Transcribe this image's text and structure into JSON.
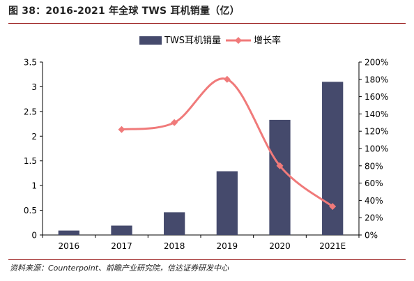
{
  "title": "图 38：2016-2021 年全球 TWS 耳机销量（亿）",
  "source": "资料来源：Counterpoint、前瞻产业研究院，信达证券研发中心",
  "colors": {
    "bar": "#454a6c",
    "line": "#f07a7a",
    "axis": "#000000",
    "rule": "#9a1b1b"
  },
  "chart_data": {
    "type": "bar+line",
    "categories": [
      "2016",
      "2017",
      "2018",
      "2019",
      "2020",
      "2021E"
    ],
    "series": [
      {
        "name": "TWS耳机销量",
        "type": "bar",
        "axis": "left",
        "values": [
          0.09,
          0.19,
          0.46,
          1.29,
          2.33,
          3.1
        ]
      },
      {
        "name": "增长率",
        "type": "line",
        "axis": "right",
        "values": [
          null,
          122,
          130,
          180,
          80,
          33
        ]
      }
    ],
    "y_left": {
      "min": 0,
      "max": 3.5,
      "ticks": [
        "0",
        "0.5",
        "1",
        "1.5",
        "2",
        "2.5",
        "3",
        "3.5"
      ],
      "tick_values": [
        0,
        0.5,
        1,
        1.5,
        2,
        2.5,
        3,
        3.5
      ]
    },
    "y_right": {
      "min": 0,
      "max": 200,
      "ticks": [
        "0%",
        "20%",
        "40%",
        "60%",
        "80%",
        "100%",
        "120%",
        "140%",
        "160%",
        "180%",
        "200%"
      ],
      "tick_values": [
        0,
        20,
        40,
        60,
        80,
        100,
        120,
        140,
        160,
        180,
        200
      ]
    },
    "legend_position": "top",
    "grid": false
  }
}
